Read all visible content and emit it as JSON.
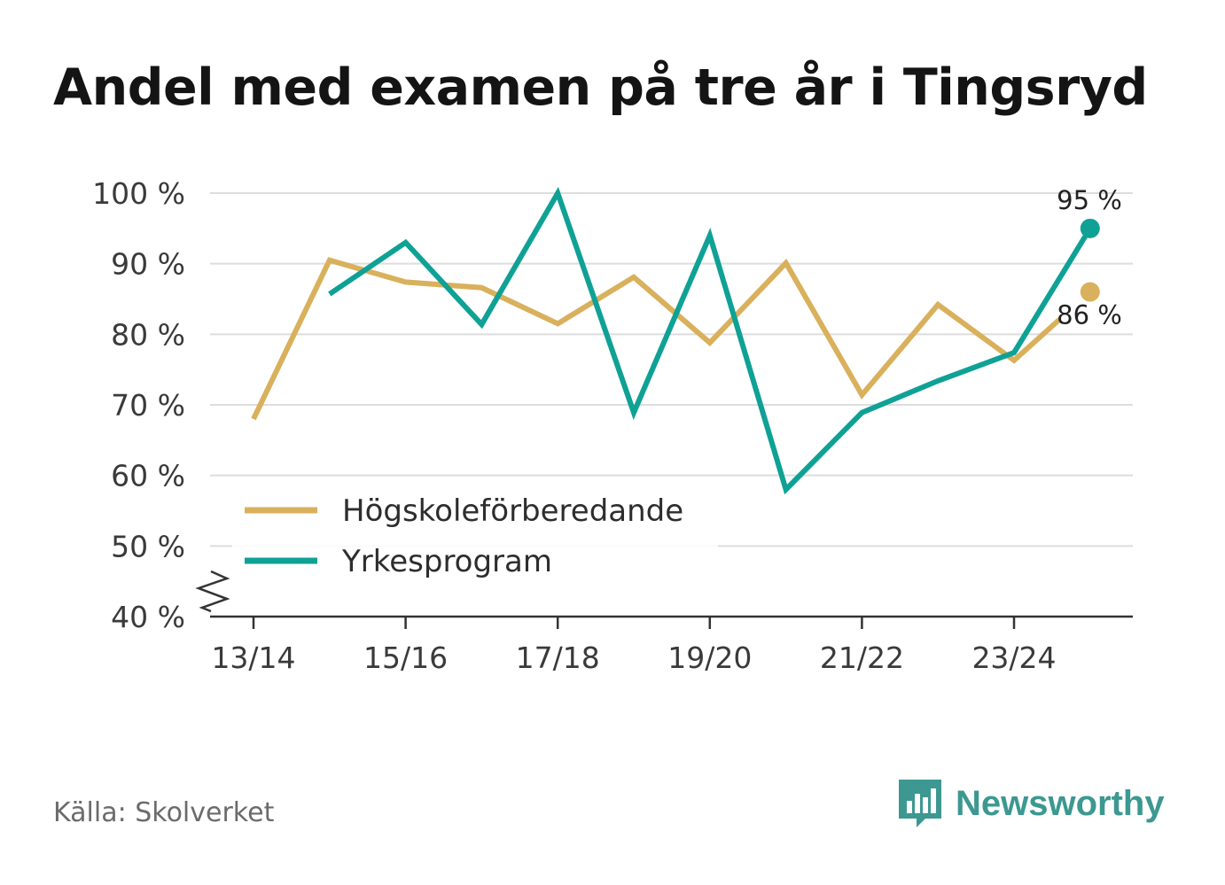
{
  "title": "Andel med examen på tre år i Tingsryd",
  "source": "Källa: Skolverket",
  "brand": {
    "name": "Newsworthy",
    "icon": "bar-chart-speech-icon",
    "color": "#3c9891"
  },
  "chart_data": {
    "type": "line",
    "title": "Andel med examen på tre år i Tingsryd",
    "xlabel": "",
    "ylabel": "",
    "categories": [
      "13/14",
      "14/15",
      "15/16",
      "16/17",
      "17/18",
      "18/19",
      "19/20",
      "20/21",
      "21/22",
      "22/23",
      "23/24",
      "24/25"
    ],
    "x_tick_labels": [
      "13/14",
      "15/16",
      "17/18",
      "19/20",
      "21/22",
      "23/24"
    ],
    "y_ticks": [
      40,
      50,
      60,
      70,
      80,
      90,
      100
    ],
    "y_tick_labels": [
      "40 %",
      "50 %",
      "60 %",
      "70 %",
      "80 %",
      "90 %",
      "100 %"
    ],
    "ylim": [
      40,
      100
    ],
    "y_axis_break": true,
    "grid": true,
    "legend_position": "lower-left",
    "series": [
      {
        "name": "Högskoleförberedande",
        "color": "#d9b05c",
        "values": [
          68,
          90.5,
          87.4,
          86.6,
          81.5,
          88.1,
          78.8,
          90.1,
          71.4,
          84.2,
          76.3,
          86
        ],
        "end_label": "86 %"
      },
      {
        "name": "Yrkesprogram",
        "color": "#0fa195",
        "values": [
          null,
          85.7,
          93,
          81.4,
          100,
          68.9,
          94,
          58,
          68.9,
          73.4,
          77.4,
          95
        ],
        "end_label": "95 %"
      }
    ]
  }
}
